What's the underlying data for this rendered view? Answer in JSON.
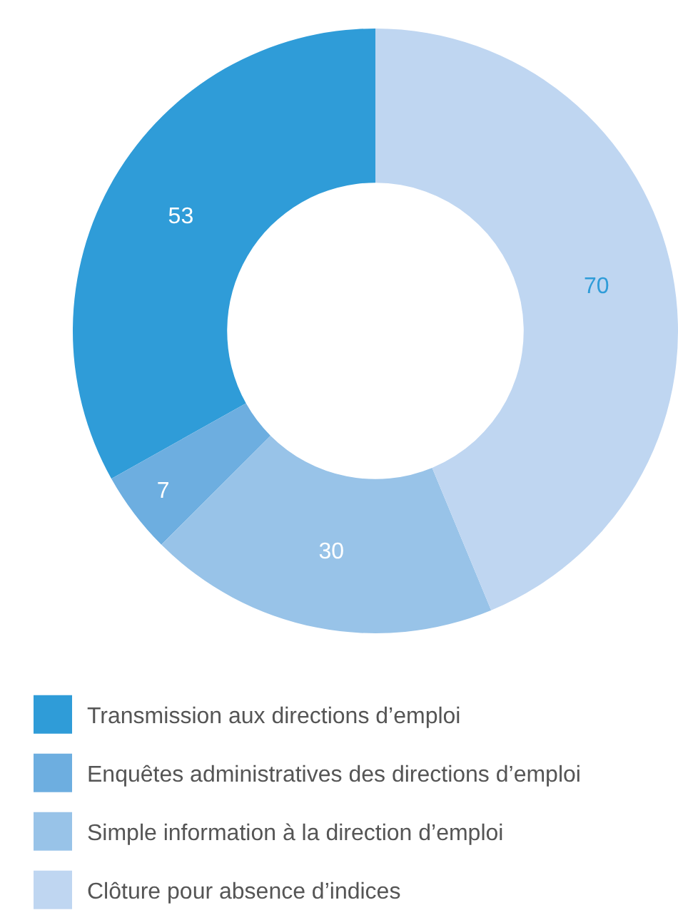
{
  "chart_data": {
    "type": "donut",
    "categories": [
      "Transmission aux directions d’emploi",
      "Enquêtes administratives des directions d’emploi",
      "Simple information à la direction d’emploi",
      "Clôture pour absence d’indices"
    ],
    "values": [
      53,
      7,
      30,
      70
    ],
    "colors": [
      "#2f9cd8",
      "#6daee0",
      "#98c3e8",
      "#bfd6f1"
    ],
    "data_labels": true,
    "legend": "bottom"
  }
}
